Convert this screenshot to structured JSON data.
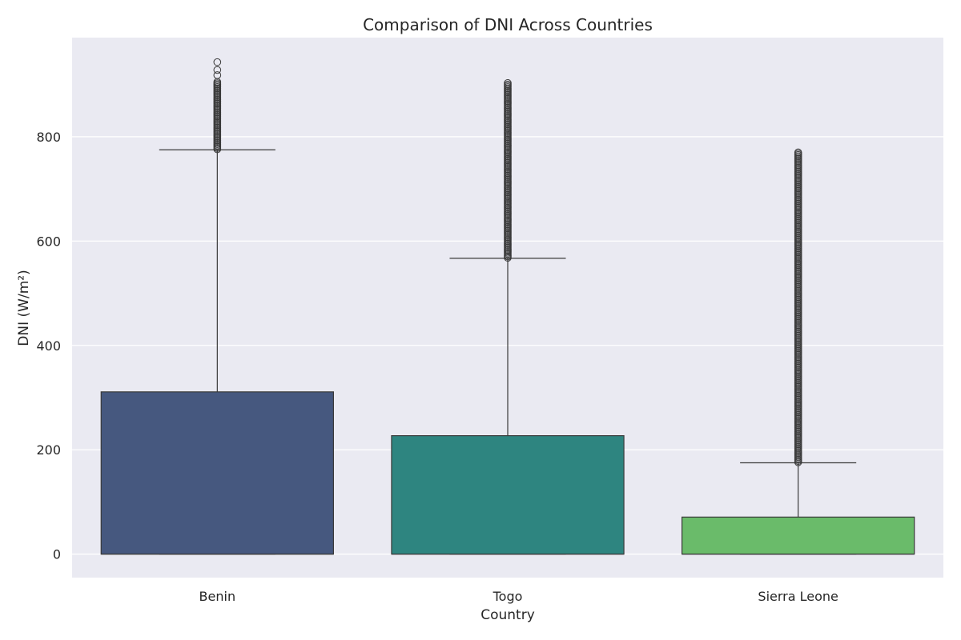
{
  "chart_data": {
    "type": "boxplot",
    "title": "Comparison of DNI Across Countries",
    "xlabel": "Country",
    "ylabel": "DNI (W/m²)",
    "ylim": [
      -45,
      990
    ],
    "yticks": [
      0,
      200,
      400,
      600,
      800
    ],
    "grid": true,
    "legend": "none",
    "categories": [
      "Benin",
      "Togo",
      "Sierra Leone"
    ],
    "boxes": [
      {
        "category": "Benin",
        "color": "#46587f",
        "whislo": 0,
        "q1": 0,
        "med": 0,
        "q3": 311,
        "whishi": 775,
        "outliers_range": [
          776,
          905
        ],
        "outliers_extra": [
          918,
          928,
          943
        ]
      },
      {
        "category": "Togo",
        "color": "#2e8580",
        "whislo": 0,
        "q1": 0,
        "med": 0,
        "q3": 227,
        "whishi": 567,
        "outliers_range": [
          568,
          900
        ],
        "outliers_extra": [
          903
        ]
      },
      {
        "category": "Sierra Leone",
        "color": "#6abb6a",
        "whislo": 0,
        "q1": 0,
        "med": 0,
        "q3": 71,
        "whishi": 175,
        "outliers_range": [
          176,
          770
        ],
        "outliers_extra": []
      }
    ]
  }
}
